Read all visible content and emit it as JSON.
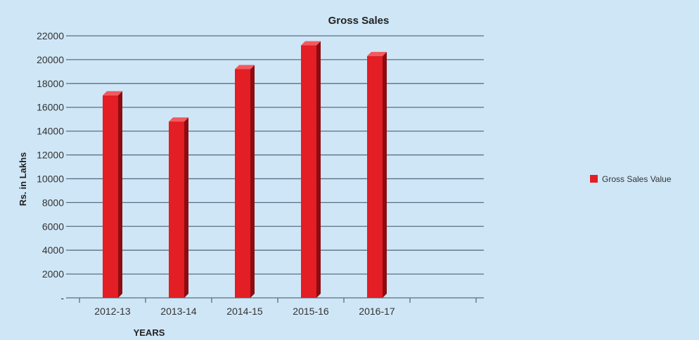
{
  "colors": {
    "background": "#cfe6f6",
    "bar_front": "#e31e24",
    "bar_side": "#8e0c10",
    "bar_top": "#f25a5e",
    "gridline": "#5b6f84",
    "text": "#333333"
  },
  "chart_data": {
    "type": "bar",
    "title": "Gross Sales",
    "xlabel": "YEARS",
    "ylabel": "Rs. in Lakhs",
    "categories": [
      "2012-13",
      "2013-14",
      "2014-15",
      "2015-16",
      "2016-17"
    ],
    "series": [
      {
        "name": "Gross Sales Value",
        "values": [
          17000,
          14800,
          19200,
          21200,
          20300
        ]
      }
    ],
    "ylim": [
      0,
      22000
    ],
    "yticks": [
      0,
      2000,
      4000,
      6000,
      8000,
      10000,
      12000,
      14000,
      16000,
      18000,
      20000,
      22000
    ],
    "ytick_labels": [
      "-",
      "2000",
      "4000",
      "6000",
      "8000",
      "10000",
      "12000",
      "14000",
      "16000",
      "18000",
      "20000",
      "22000"
    ],
    "grid": true,
    "legend_position": "right",
    "style": "3d-column"
  }
}
